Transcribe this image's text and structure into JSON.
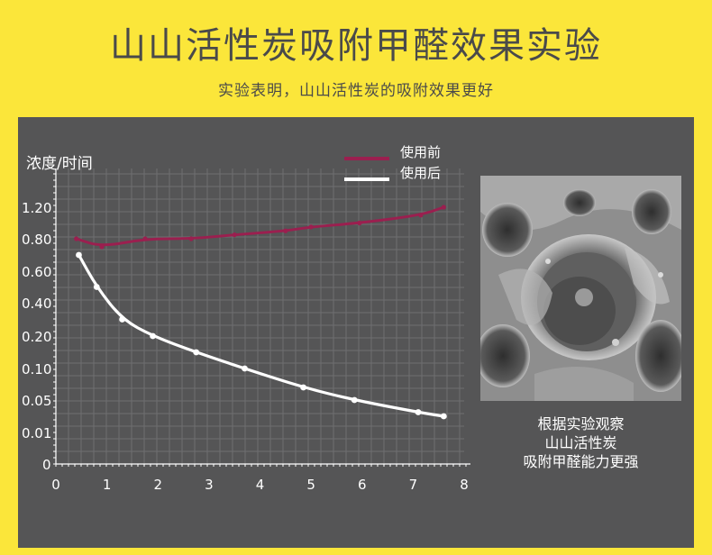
{
  "header": {
    "title": "山山活性炭吸附甲醛效果实验",
    "subtitle": "实验表明，山山活性炭的吸附效果更好"
  },
  "photo": {
    "caption_lines": [
      "根据实验观察",
      "山山活性炭",
      "吸附甲醛能力更强"
    ]
  },
  "colors": {
    "background": "#fbe63a",
    "panel": "#555556",
    "series_before": "#9b1f4f",
    "series_after": "#ffffff"
  },
  "chart_data": {
    "type": "line",
    "ylabel": "浓度/时间",
    "xlabel": "",
    "x_ticks": [
      "0",
      "1",
      "2",
      "3",
      "4",
      "5",
      "6",
      "7",
      "8"
    ],
    "y_ticks": [
      "0",
      "0.01",
      "0.05",
      "0.10",
      "0.20",
      "0.40",
      "0.60",
      "0.80",
      "1.20"
    ],
    "xlim": [
      0,
      8
    ],
    "grid": true,
    "legend": "top-center",
    "series": [
      {
        "name": "使用前",
        "color": "#9b1f4f",
        "points": [
          [
            0.4,
            0.8
          ],
          [
            0.9,
            0.75
          ],
          [
            1.75,
            0.8
          ],
          [
            2.65,
            0.8
          ],
          [
            3.5,
            0.85
          ],
          [
            4.5,
            0.9
          ],
          [
            5.0,
            0.95
          ],
          [
            5.95,
            1.0
          ],
          [
            7.15,
            1.1
          ],
          [
            7.6,
            1.2
          ]
        ]
      },
      {
        "name": "使用后",
        "color": "#ffffff",
        "points": [
          [
            0.45,
            0.7
          ],
          [
            0.8,
            0.5
          ],
          [
            1.3,
            0.3
          ],
          [
            1.9,
            0.2
          ],
          [
            2.75,
            0.15
          ],
          [
            3.7,
            0.1
          ],
          [
            4.85,
            0.07
          ],
          [
            5.85,
            0.05
          ],
          [
            7.1,
            0.035
          ],
          [
            7.6,
            0.03
          ]
        ]
      }
    ]
  }
}
